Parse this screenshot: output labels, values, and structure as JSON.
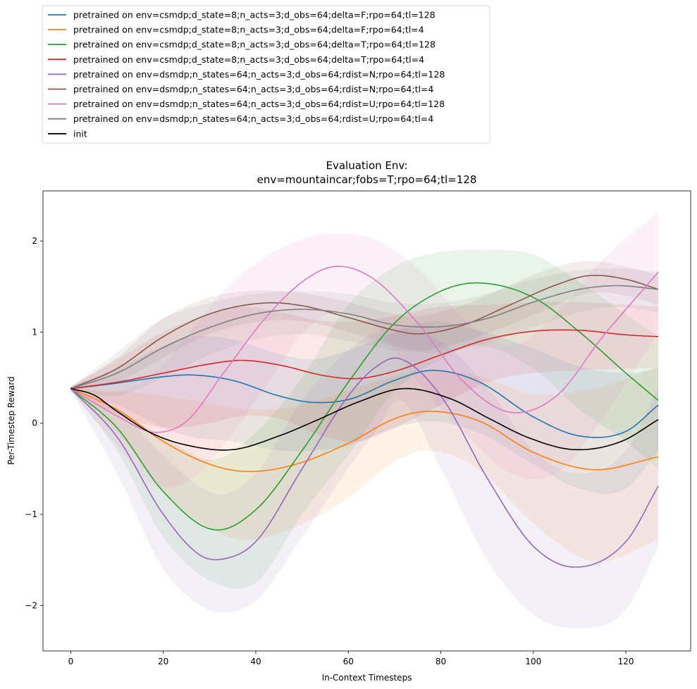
{
  "chart_data": {
    "type": "line",
    "title": "Evaluation Env:",
    "subtitle": "env=mountaincar;fobs=T;rpo=64;tl=128",
    "xlabel": "In-Context Timesteps",
    "ylabel": "Per-Timestep Reward",
    "xlim": [
      -6,
      134
    ],
    "ylim": [
      -2.5,
      2.55
    ],
    "xticks": [
      0,
      20,
      40,
      60,
      80,
      100,
      120
    ],
    "yticks": [
      -2,
      -1,
      0,
      1,
      2
    ],
    "grid": false,
    "legend_position": "above-left",
    "bands": "shaded std band around each pretrained series",
    "series": [
      {
        "name": "pretrained on env=csmdp;d_state=8;n_acts=3;d_obs=64;delta=F;rpo=64;tl=128",
        "color": "#1f77b4",
        "x": [
          0,
          10,
          20,
          26,
          35,
          45,
          52,
          60,
          70,
          78,
          88,
          100,
          110,
          120,
          127
        ],
        "y": [
          0.38,
          0.44,
          0.51,
          0.53,
          0.47,
          0.3,
          0.23,
          0.26,
          0.47,
          0.58,
          0.46,
          0.07,
          -0.14,
          -0.09,
          0.2
        ],
        "upper": [
          0.4,
          0.6,
          0.85,
          0.95,
          0.92,
          0.76,
          0.7,
          0.8,
          1.0,
          1.12,
          1.02,
          0.82,
          0.62,
          0.55,
          0.6
        ],
        "lower": [
          0.36,
          0.2,
          -0.05,
          -0.15,
          -0.2,
          -0.3,
          -0.3,
          -0.25,
          -0.05,
          0.02,
          -0.1,
          -0.45,
          -0.72,
          -0.72,
          -0.3
        ]
      },
      {
        "name": "pretrained on env=csmdp;d_state=8;n_acts=3;d_obs=64;delta=F;rpo=64;tl=4",
        "color": "#ff7f0e",
        "x": [
          0,
          10,
          20,
          30,
          38,
          48,
          60,
          70,
          77,
          88,
          100,
          113,
          127
        ],
        "y": [
          0.38,
          0.15,
          -0.2,
          -0.45,
          -0.53,
          -0.46,
          -0.22,
          0.05,
          0.13,
          0.03,
          -0.32,
          -0.51,
          -0.37
        ],
        "upper": [
          0.4,
          0.35,
          0.3,
          0.22,
          0.15,
          0.18,
          0.36,
          0.52,
          0.58,
          0.52,
          0.32,
          0.38,
          0.62
        ],
        "lower": [
          0.36,
          -0.1,
          -0.75,
          -1.15,
          -1.28,
          -1.15,
          -0.82,
          -0.42,
          -0.3,
          -0.5,
          -1.1,
          -1.52,
          -1.28
        ]
      },
      {
        "name": "pretrained on env=csmdp;d_state=8;n_acts=3;d_obs=64;delta=T;rpo=64;tl=128",
        "color": "#2ca02c",
        "x": [
          0,
          10,
          20,
          31,
          40,
          50,
          60,
          70,
          80,
          88,
          100,
          110,
          120,
          127
        ],
        "y": [
          0.38,
          -0.05,
          -0.75,
          -1.17,
          -0.95,
          -0.3,
          0.45,
          1.1,
          1.45,
          1.54,
          1.38,
          1.0,
          0.55,
          0.25
        ],
        "upper": [
          0.4,
          0.15,
          -0.15,
          -0.4,
          -0.1,
          0.5,
          1.3,
          1.72,
          1.88,
          1.9,
          1.85,
          1.55,
          1.2,
          0.95
        ],
        "lower": [
          0.36,
          -0.3,
          -1.25,
          -1.75,
          -1.75,
          -1.0,
          -0.35,
          0.35,
          0.7,
          0.85,
          0.6,
          0.15,
          -0.2,
          -0.5
        ]
      },
      {
        "name": "pretrained on env=csmdp;d_state=8;n_acts=3;d_obs=64;delta=T;rpo=64;tl=4",
        "color": "#d62728",
        "x": [
          0,
          10,
          20,
          30,
          37,
          45,
          55,
          62,
          70,
          80,
          90,
          100,
          110,
          120,
          127
        ],
        "y": [
          0.38,
          0.45,
          0.55,
          0.65,
          0.69,
          0.64,
          0.52,
          0.49,
          0.57,
          0.75,
          0.92,
          1.01,
          1.02,
          0.97,
          0.95
        ],
        "upper": [
          0.4,
          0.7,
          1.0,
          1.2,
          1.28,
          1.22,
          1.12,
          1.12,
          1.18,
          1.28,
          1.3,
          1.33,
          1.33,
          1.3,
          1.28
        ],
        "lower": [
          0.36,
          0.1,
          -0.05,
          0.0,
          0.08,
          0.05,
          -0.15,
          -0.2,
          -0.05,
          0.2,
          0.45,
          0.55,
          0.58,
          0.6,
          0.6
        ]
      },
      {
        "name": "pretrained on env=dsmdp;n_states=64;n_acts=3;d_obs=64;rdist=N;rpo=64;tl=128",
        "color": "#9467bd",
        "x": [
          0,
          10,
          20,
          28,
          33,
          40,
          50,
          60,
          66,
          71,
          80,
          90,
          100,
          109,
          120,
          127
        ],
        "y": [
          0.38,
          -0.15,
          -1.0,
          -1.45,
          -1.49,
          -1.3,
          -0.5,
          0.3,
          0.62,
          0.71,
          0.3,
          -0.6,
          -1.35,
          -1.58,
          -1.3,
          -0.69
        ],
        "upper": [
          0.4,
          0.15,
          -0.35,
          -0.7,
          -0.78,
          -0.55,
          0.25,
          0.8,
          1.0,
          1.05,
          0.9,
          0.4,
          -0.3,
          -0.55,
          -0.3,
          0.4
        ],
        "lower": [
          0.36,
          -0.55,
          -1.6,
          -2.0,
          -2.08,
          -1.95,
          -1.25,
          -0.5,
          -0.08,
          0.25,
          -0.5,
          -1.5,
          -2.1,
          -2.25,
          -2.05,
          -1.35
        ]
      },
      {
        "name": "pretrained on env=dsmdp;n_states=64;n_acts=3;d_obs=64;rdist=N;rpo=64;tl=4",
        "color": "#8c564b",
        "x": [
          0,
          10,
          20,
          30,
          42,
          50,
          60,
          70,
          75,
          85,
          95,
          105,
          112,
          120,
          127
        ],
        "y": [
          0.38,
          0.6,
          0.95,
          1.2,
          1.32,
          1.29,
          1.16,
          1.02,
          0.98,
          1.08,
          1.3,
          1.52,
          1.62,
          1.58,
          1.47
        ],
        "upper": [
          0.4,
          0.72,
          1.15,
          1.38,
          1.46,
          1.43,
          1.33,
          1.2,
          1.18,
          1.3,
          1.52,
          1.72,
          1.78,
          1.72,
          1.62
        ],
        "lower": [
          0.36,
          0.45,
          0.72,
          0.98,
          1.12,
          1.12,
          1.0,
          0.85,
          0.8,
          0.9,
          1.08,
          1.3,
          1.43,
          1.4,
          1.3
        ]
      },
      {
        "name": "pretrained on env=dsmdp;n_states=64;n_acts=3;d_obs=64;rdist=U;rpo=64;tl=128",
        "color": "#e377c2",
        "x": [
          0,
          10,
          18,
          25,
          33,
          42,
          50,
          57,
          65,
          75,
          85,
          95,
          105,
          115,
          127
        ],
        "y": [
          0.38,
          0.08,
          -0.1,
          0.02,
          0.55,
          1.15,
          1.55,
          1.72,
          1.6,
          1.1,
          0.45,
          0.12,
          0.3,
          0.95,
          1.66
        ],
        "upper": [
          0.4,
          0.35,
          0.55,
          0.95,
          1.45,
          1.82,
          2.02,
          2.08,
          2.03,
          1.7,
          1.15,
          0.85,
          1.2,
          1.8,
          2.32
        ],
        "lower": [
          0.36,
          -0.25,
          -0.68,
          -0.65,
          -0.25,
          0.4,
          0.98,
          1.22,
          1.1,
          0.45,
          -0.1,
          -0.55,
          -0.55,
          0.05,
          1.0
        ]
      },
      {
        "name": "pretrained on env=dsmdp;n_states=64;n_acts=3;d_obs=64;rdist=U;rpo=64;tl=4",
        "color": "#7f7f7f",
        "x": [
          0,
          10,
          20,
          30,
          40,
          50,
          60,
          70,
          80,
          90,
          100,
          110,
          118,
          127
        ],
        "y": [
          0.38,
          0.55,
          0.83,
          1.05,
          1.2,
          1.25,
          1.2,
          1.08,
          1.06,
          1.15,
          1.33,
          1.47,
          1.51,
          1.47
        ],
        "upper": [
          0.4,
          0.78,
          1.15,
          1.32,
          1.42,
          1.45,
          1.42,
          1.32,
          1.32,
          1.42,
          1.58,
          1.68,
          1.7,
          1.66
        ],
        "lower": [
          0.36,
          0.3,
          0.5,
          0.75,
          0.92,
          0.98,
          0.9,
          0.8,
          0.78,
          0.88,
          1.05,
          1.22,
          1.28,
          1.22
        ]
      },
      {
        "name": "init",
        "color": "#000000",
        "x": [
          0,
          5,
          10,
          17.5,
          25,
          35,
          45,
          53.5,
          62,
          72,
          82,
          90.5,
          99,
          109,
          119,
          127
        ],
        "y": [
          0.38,
          0.31,
          0.13,
          -0.11,
          -0.24,
          -0.29,
          -0.14,
          0.04,
          0.23,
          0.38,
          0.27,
          0.05,
          -0.16,
          -0.29,
          -0.2,
          0.04
        ]
      }
    ]
  }
}
